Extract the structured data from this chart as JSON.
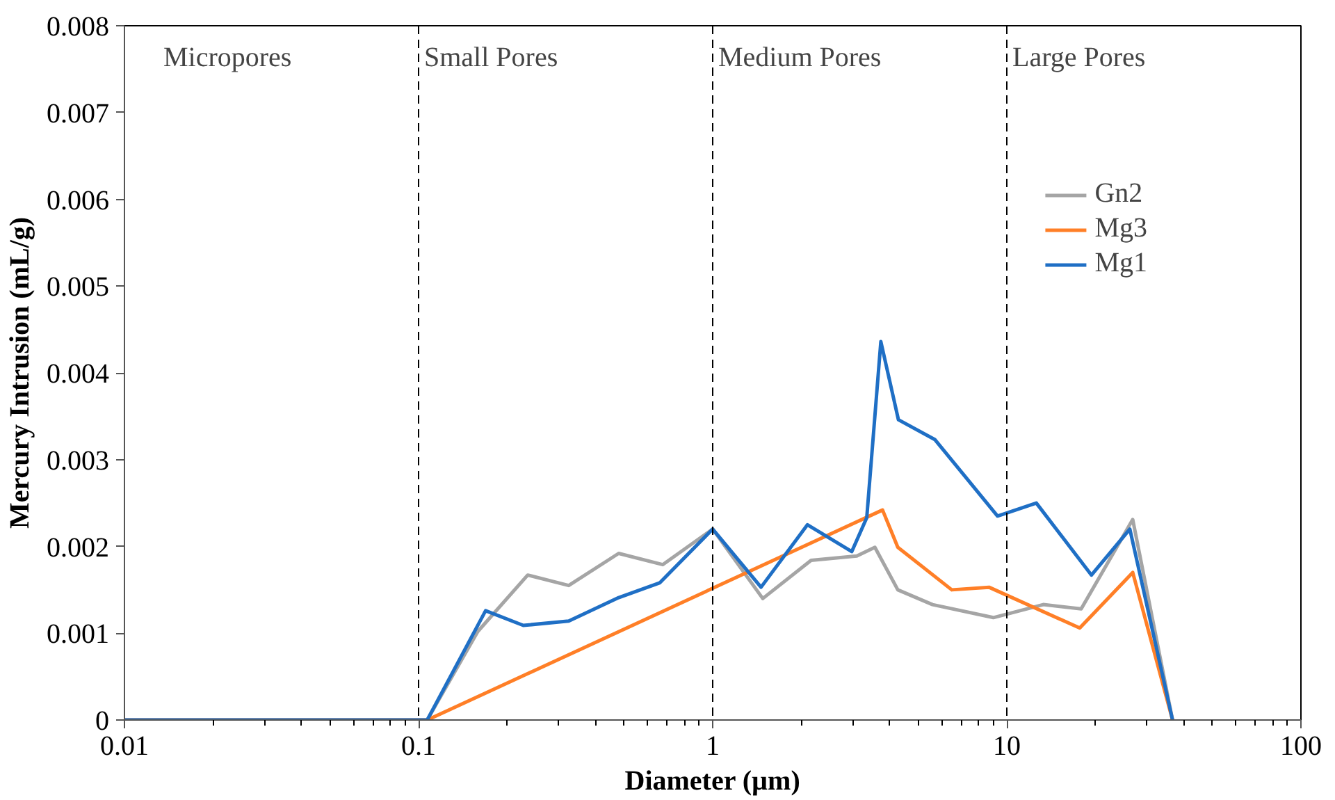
{
  "chart_data": {
    "type": "line",
    "xlabel": "Diameter (µm)",
    "ylabel": "Mercury Intrusion (mL/g)",
    "log": "x",
    "xlim": [
      0.01,
      100
    ],
    "xticks": [
      0.01,
      0.1,
      1,
      10,
      100
    ],
    "ylim": [
      0,
      0.008
    ],
    "yticks": [
      0,
      0.001,
      0.002,
      0.003,
      0.004,
      0.005,
      0.006,
      0.007,
      0.008
    ],
    "grid": false,
    "legend": "top right",
    "line_style": "solid",
    "marker": "none",
    "ref_lines": [
      {
        "axis": "x",
        "value": 0.1,
        "color": "#000000",
        "line_style": "dashed"
      },
      {
        "axis": "x",
        "value": 1,
        "color": "#000000",
        "line_style": "dashed"
      },
      {
        "axis": "x",
        "value": 10,
        "color": "#000000",
        "line_style": "dashed"
      }
    ],
    "annotations": [
      "Micropores",
      "Small Pores",
      "Medium Pores",
      "Large Pores"
    ],
    "series": [
      {
        "name": "Gn2",
        "color": "#a5a5a5",
        "x": [
          0.01,
          0.1,
          0.107,
          0.159,
          0.235,
          0.324,
          0.479,
          0.676,
          1.0,
          1.48,
          2.16,
          3.09,
          3.56,
          4.26,
          5.59,
          9.0,
          13.3,
          17.9,
          26.8,
          36.6
        ],
        "values": [
          0,
          0,
          0,
          0.00102,
          0.00167,
          0.00155,
          0.00192,
          0.00179,
          0.0022,
          0.0014,
          0.00184,
          0.00189,
          0.00199,
          0.0015,
          0.00133,
          0.00118,
          0.00133,
          0.00128,
          0.00231,
          0
        ]
      },
      {
        "name": "Mg3",
        "color": "#ff7f27",
        "x": [
          0.01,
          0.107,
          3.78,
          4.26,
          6.5,
          8.7,
          17.7,
          26.8,
          36.6
        ],
        "values": [
          0,
          0,
          0.00242,
          0.00199,
          0.0015,
          0.00153,
          0.00106,
          0.0017,
          0
        ]
      },
      {
        "name": "Mg1",
        "color": "#1f6fc5",
        "x": [
          0.01,
          0.1,
          0.107,
          0.169,
          0.227,
          0.324,
          0.479,
          0.66,
          1.0,
          1.46,
          2.1,
          2.97,
          3.34,
          3.73,
          4.28,
          5.7,
          9.3,
          12.6,
          19.4,
          26.2,
          36.6
        ],
        "values": [
          0,
          0,
          0,
          0.00126,
          0.00109,
          0.00114,
          0.00141,
          0.00158,
          0.0022,
          0.00153,
          0.00225,
          0.00194,
          0.00233,
          0.00436,
          0.00346,
          0.00323,
          0.00235,
          0.0025,
          0.00167,
          0.0022,
          0
        ]
      }
    ]
  }
}
